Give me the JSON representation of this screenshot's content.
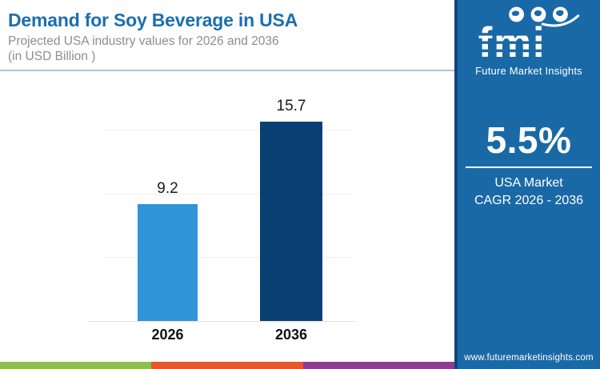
{
  "header": {
    "title": "Demand for Soy Beverage in USA",
    "subtitle_line1": "Projected USA industry values for 2026 and 2036",
    "subtitle_line2": "(in USD Billion )"
  },
  "sidebar": {
    "logo_text": "fmi",
    "logo_subtext": "Future Market Insights",
    "cagr_value": "5.5%",
    "cagr_caption_line1": "USA Market",
    "cagr_caption_line2": "CAGR 2026 - 2036",
    "website": "www.futuremarketinsights.com",
    "background_color": "#1A69A7"
  },
  "chart_data": {
    "type": "bar",
    "title": "Demand for Soy Beverage in USA",
    "units": "USD Billion",
    "categories": [
      "2026",
      "2036"
    ],
    "values": [
      9.2,
      15.7
    ],
    "data_labels": [
      "9.2",
      "15.7"
    ],
    "bar_colors": [
      "#3094D8",
      "#0A3F74"
    ],
    "xlabel": "",
    "ylabel": "",
    "ylim": [
      0,
      19
    ],
    "gridline_values": [
      5,
      10,
      15
    ],
    "grid": "horizontal-only",
    "legend": "none"
  },
  "footer_stripe_colors": [
    "#8CC04B",
    "#E8562B",
    "#8E3C90"
  ]
}
